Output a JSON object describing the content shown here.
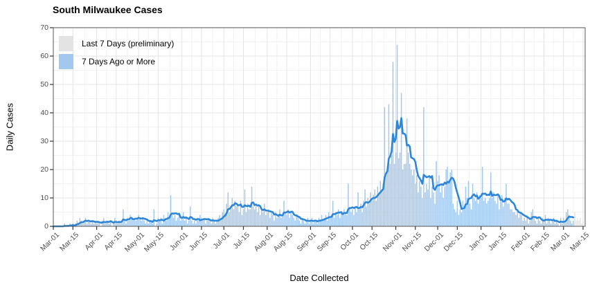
{
  "chart_data": {
    "type": "bar",
    "title": "South Milwaukee Cases",
    "xlabel": "Date Collected",
    "ylabel": "Daily Cases",
    "ylim": [
      0,
      70
    ],
    "y_major_ticks": [
      0,
      10,
      20,
      30,
      40,
      50,
      60,
      70
    ],
    "y_minor_ticks": [
      5,
      15,
      25,
      35,
      45,
      55,
      65
    ],
    "grid": "on",
    "legend_position": "top-left inside plot",
    "x_tick_labels": [
      "Mar-01",
      "Mar-15",
      "Apr-01",
      "Apr-15",
      "May-01",
      "May-15",
      "Jun-01",
      "Jun-15",
      "Jul-01",
      "Jul-15",
      "Aug-01",
      "Aug-15",
      "Sep-01",
      "Sep-15",
      "Oct-01",
      "Oct-15",
      "Nov-01",
      "Nov-15",
      "Dec-01",
      "Dec-15",
      "Jan-01",
      "Jan-15",
      "Feb-01",
      "Feb-15",
      "Mar-01",
      "Mar-15"
    ],
    "x_tick_day_index": [
      0,
      14,
      31,
      45,
      61,
      75,
      92,
      106,
      122,
      136,
      153,
      167,
      184,
      198,
      214,
      228,
      245,
      259,
      275,
      289,
      306,
      320,
      337,
      351,
      365,
      379
    ],
    "x_range": [
      "Mar-01",
      "Mar-15"
    ],
    "n_days": 380,
    "preliminary_last_n_days": 7,
    "series": [
      {
        "name": "Last 7 Days (preliminary)",
        "color": "#e3e3e3"
      },
      {
        "name": "7 Days Ago or More",
        "color": "#a2c8ee"
      }
    ],
    "line": {
      "name": "7-day average of daily cases",
      "color": "#2e86d8",
      "derivation": "trailing 7-day mean of daily values, drawn through last non-preliminary day"
    },
    "daily_values": [
      0,
      0,
      0,
      0,
      0,
      0,
      0,
      0,
      1,
      0,
      0,
      0,
      1,
      0,
      1,
      0,
      1,
      2,
      1,
      3,
      2,
      1,
      2,
      3,
      1,
      2,
      2,
      1,
      2,
      1,
      2,
      1,
      2,
      1,
      0,
      2,
      3,
      1,
      2,
      2,
      1,
      2,
      0,
      1,
      3,
      2,
      1,
      2,
      1,
      2,
      6,
      2,
      1,
      3,
      2,
      4,
      3,
      2,
      3,
      2,
      3,
      4,
      3,
      2,
      3,
      2,
      1,
      2,
      1,
      2,
      2,
      1,
      6,
      0,
      1,
      3,
      2,
      3,
      1,
      4,
      3,
      2,
      5,
      3,
      11,
      4,
      3,
      4,
      2,
      3,
      4,
      2,
      3,
      5,
      2,
      3,
      1,
      2,
      7,
      2,
      1,
      2,
      1,
      3,
      2,
      4,
      3,
      2,
      3,
      1,
      2,
      3,
      2,
      1,
      3,
      2,
      1,
      2,
      3,
      4,
      3,
      5,
      6,
      4,
      8,
      12,
      5,
      7,
      10,
      6,
      9,
      7,
      8,
      5,
      9,
      4,
      6,
      13,
      5,
      8,
      6,
      6,
      14,
      7,
      6,
      7,
      5,
      7,
      4,
      6,
      5,
      8,
      4,
      5,
      6,
      3,
      5,
      4,
      2,
      5,
      3,
      4,
      6,
      3,
      4,
      9,
      5,
      4,
      6,
      3,
      5,
      4,
      3,
      2,
      4,
      3,
      2,
      1,
      3,
      2,
      1,
      2,
      3,
      1,
      2,
      3,
      1,
      2,
      2,
      1,
      3,
      2,
      4,
      2,
      3,
      4,
      2,
      5,
      3,
      4,
      9,
      3,
      5,
      4,
      6,
      3,
      5,
      4,
      6,
      5,
      4,
      15,
      6,
      5,
      6,
      4,
      7,
      5,
      12,
      6,
      8,
      5,
      9,
      13,
      7,
      10,
      8,
      12,
      9,
      11,
      13,
      9,
      14,
      12,
      16,
      13,
      15,
      42,
      18,
      20,
      43,
      22,
      25,
      58,
      22,
      26,
      64,
      24,
      26,
      47,
      20,
      22,
      22,
      38,
      26,
      22,
      20,
      18,
      20,
      15,
      18,
      12,
      16,
      14,
      10,
      42,
      12,
      15,
      13,
      18,
      10,
      14,
      12,
      8,
      23,
      16,
      18,
      12,
      15,
      10,
      14,
      20,
      21,
      16,
      19,
      20,
      8,
      6,
      5,
      9,
      4,
      6,
      5,
      9,
      7,
      14,
      10,
      16,
      8,
      6,
      15,
      10,
      9,
      12,
      8,
      11,
      10,
      21,
      9,
      10,
      8,
      9,
      10,
      19,
      10,
      12,
      9,
      8,
      11,
      6,
      9,
      11,
      7,
      10,
      15,
      8,
      8,
      6,
      6,
      5,
      5,
      4,
      6,
      3,
      5,
      4,
      2,
      3,
      2,
      4,
      1,
      2,
      5,
      6,
      3,
      2,
      1,
      3,
      2,
      1,
      3,
      2,
      4,
      1,
      3,
      2,
      1,
      2,
      3,
      1,
      2,
      1,
      0,
      3,
      1,
      3,
      2,
      5,
      6,
      4,
      2,
      1,
      2,
      5,
      2,
      3,
      2,
      3,
      1,
      2
    ]
  },
  "style_colors": {
    "background": "#ffffff",
    "grid_major": "#e4e4e4",
    "grid_minor": "#f2f2f2",
    "panel_border": "#555555",
    "tick_mark": "#333333",
    "tick_text": "#4d4d4d"
  }
}
